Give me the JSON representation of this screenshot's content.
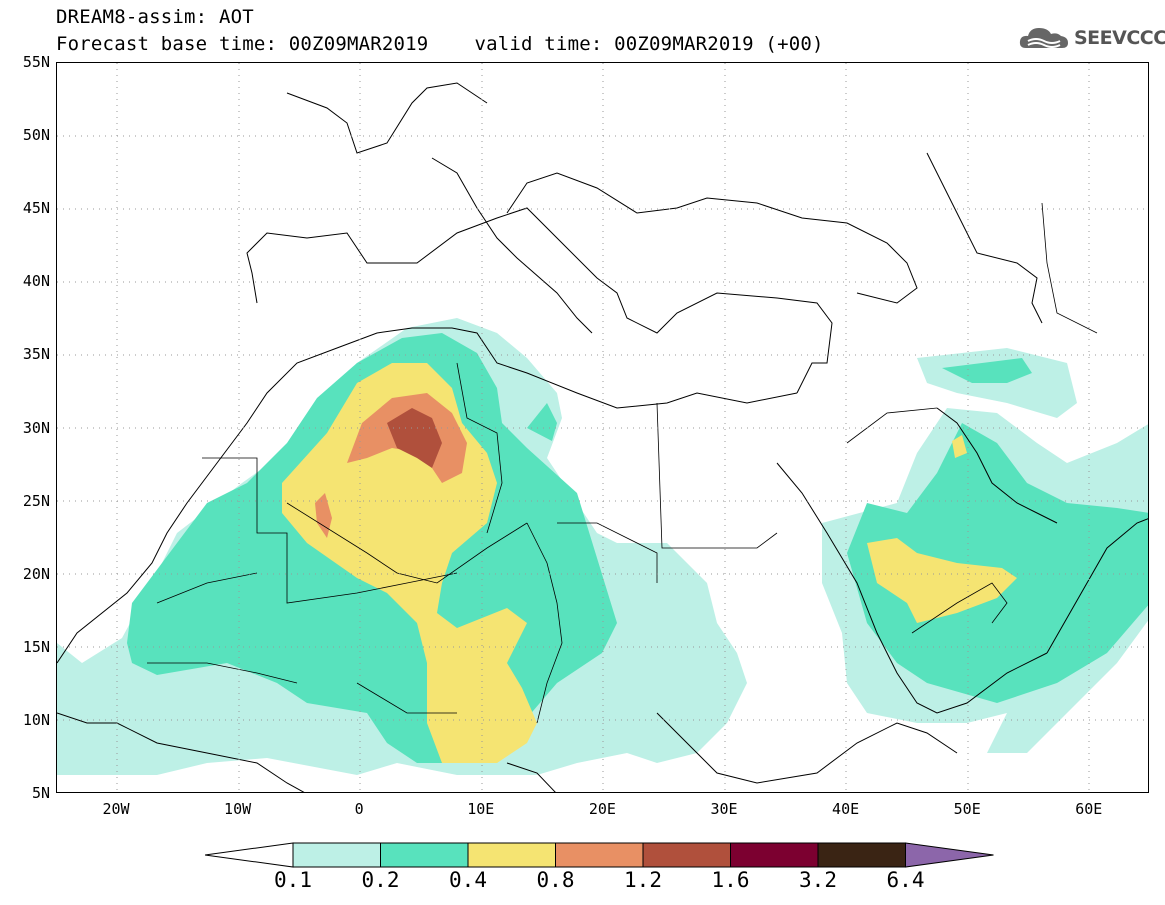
{
  "header": {
    "title": "DREAM8-assim: AOT",
    "base_time_label": "Forecast base time: 00Z09MAR2019",
    "valid_time_label": "valid time: 00Z09MAR2019 (+00)"
  },
  "logo": {
    "text": "SEEVCCC",
    "icon": "cloud-icon"
  },
  "map": {
    "lat_labels": [
      "55N",
      "50N",
      "45N",
      "40N",
      "35N",
      "30N",
      "25N",
      "20N",
      "15N",
      "10N",
      "5N"
    ],
    "lon_labels": [
      "20W",
      "10W",
      "0",
      "10E",
      "20E",
      "30E",
      "40E",
      "50E",
      "60E"
    ]
  },
  "colorbar": {
    "labels": [
      "0.1",
      "0.2",
      "0.4",
      "0.8",
      "1.2",
      "1.6",
      "3.2",
      "6.4"
    ],
    "colors": [
      "#ffffff",
      "#bdf0e6",
      "#58e2bd",
      "#f5e472",
      "#e89064",
      "#b0503c",
      "#7c0030",
      "#3a2414",
      "#8c66aa"
    ]
  },
  "legend_colors": {
    "level_0_1": "#bdf0e6",
    "level_0_2": "#58e2bd",
    "level_0_4": "#f5e472",
    "level_0_8": "#e89064",
    "level_1_2": "#b0503c"
  }
}
